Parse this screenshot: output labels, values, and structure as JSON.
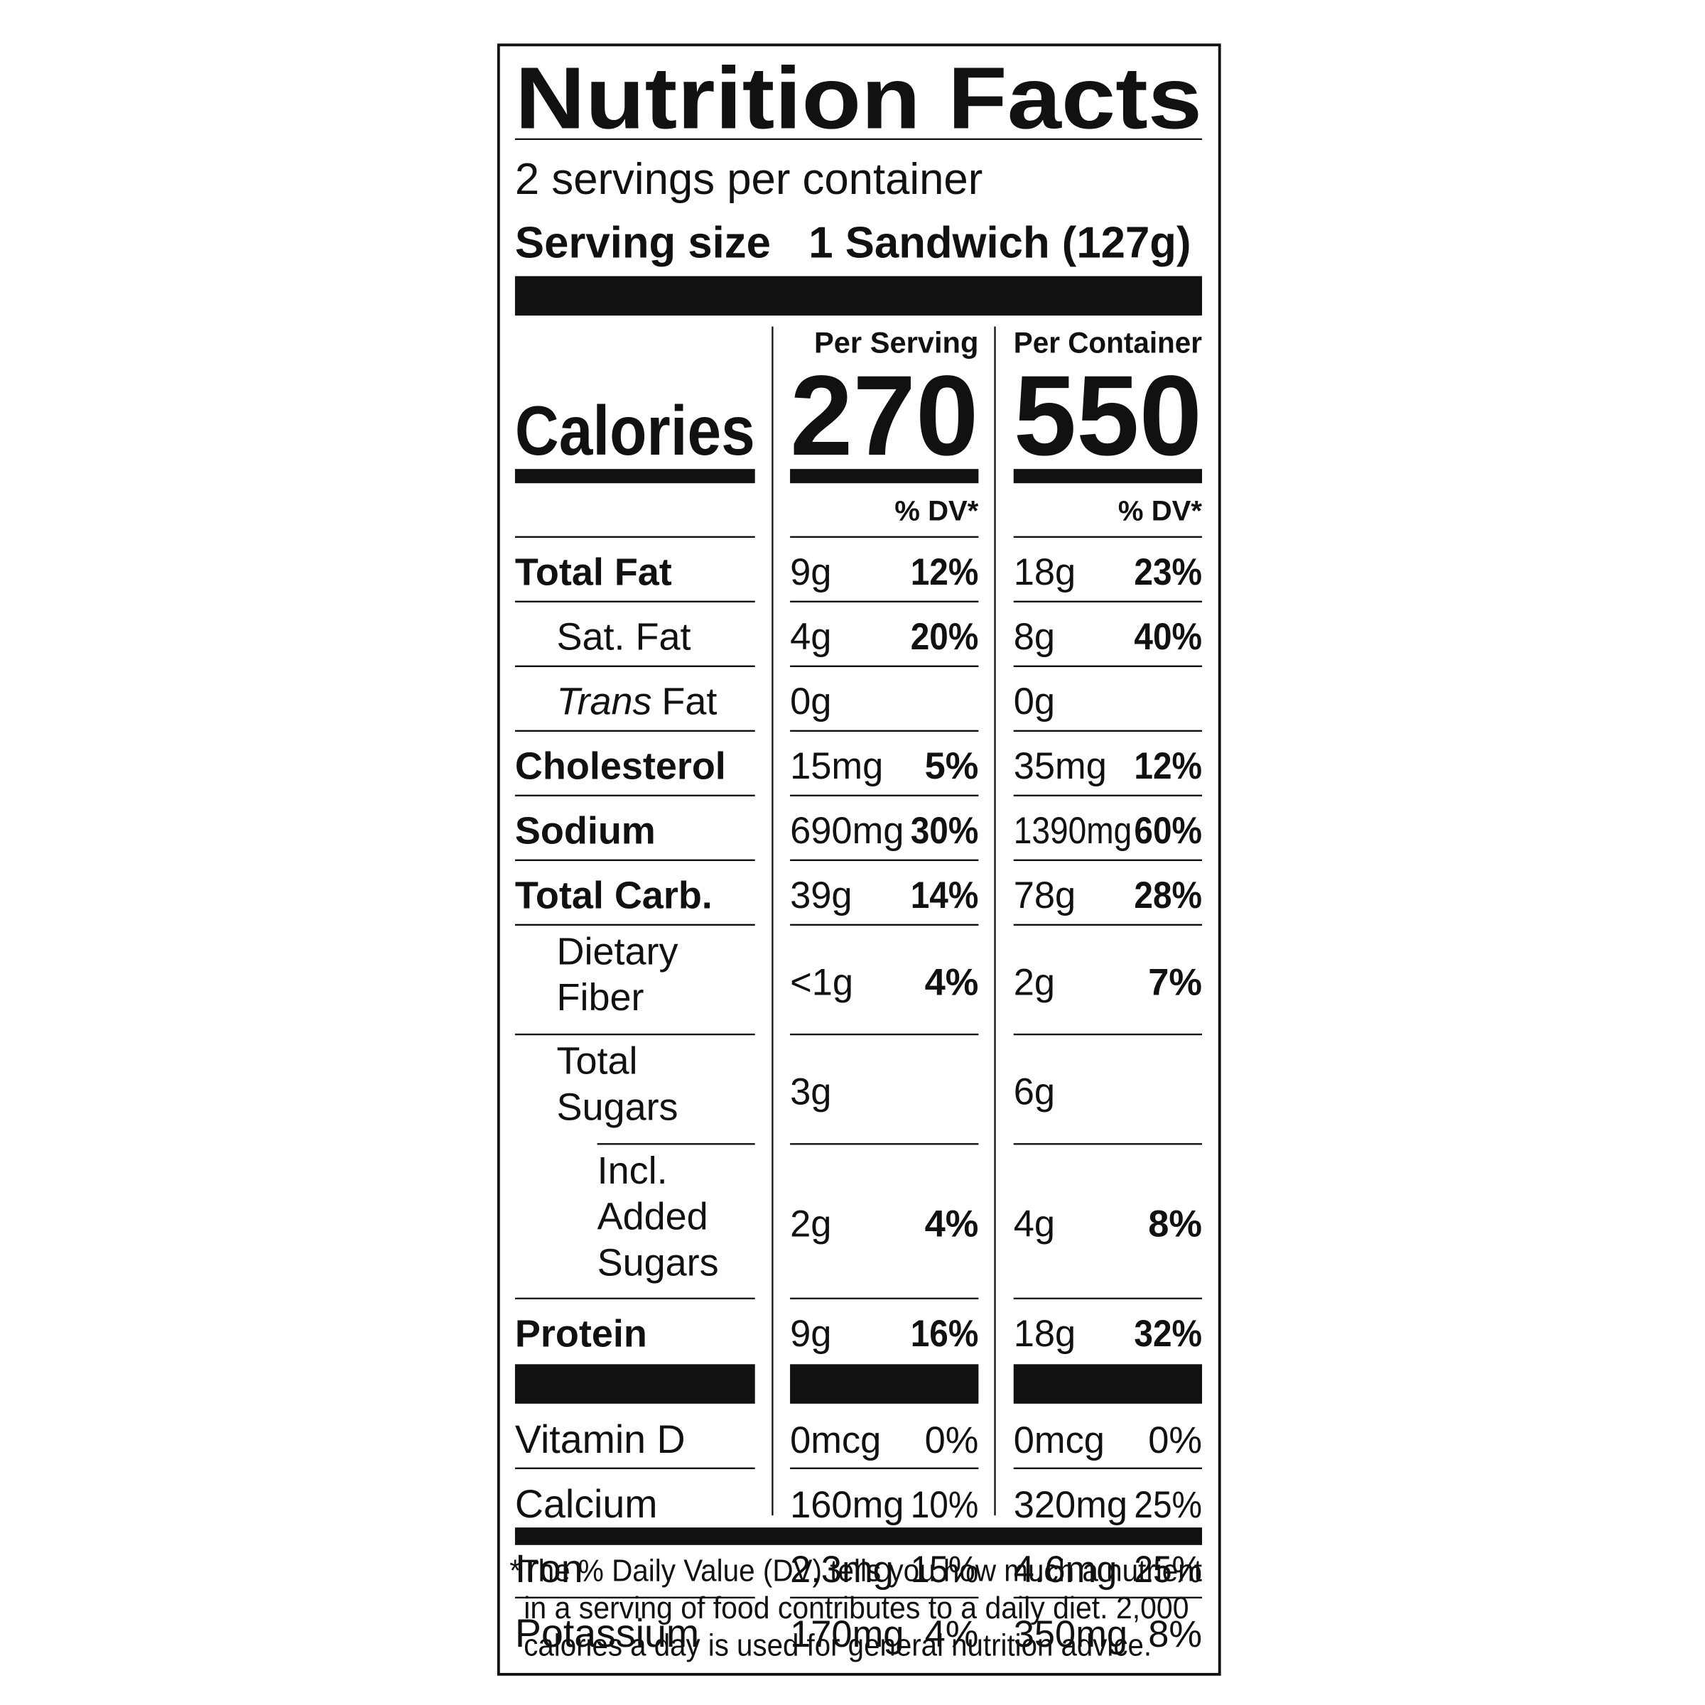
{
  "header": {
    "title": "Nutrition Facts",
    "servings": "2 servings per container",
    "serving_size_label": "Serving size",
    "serving_size": "1 Sandwich (127g)"
  },
  "calories": {
    "label": "Calories",
    "columns": [
      {
        "heading": "Per Serving",
        "value": "270",
        "dv_heading": "% DV*"
      },
      {
        "heading": "Per Container",
        "value": "550",
        "dv_heading": "% DV*"
      }
    ]
  },
  "nutrients": [
    {
      "name": "Total Fat",
      "bold": true,
      "indent": 0,
      "amounts": [
        "9g",
        "18g"
      ],
      "dv": [
        "12%",
        "23%"
      ]
    },
    {
      "name": "Sat. Fat",
      "bold": false,
      "indent": 1,
      "amounts": [
        "4g",
        "8g"
      ],
      "dv": [
        "20%",
        "40%"
      ]
    },
    {
      "name_italic": "Trans",
      "name": "Fat",
      "bold": false,
      "indent": 1,
      "amounts": [
        "0g",
        "0g"
      ]
    },
    {
      "name": "Cholesterol",
      "bold": true,
      "indent": 0,
      "amounts": [
        "15mg",
        "35mg"
      ],
      "dv": [
        "5%",
        "12%"
      ]
    },
    {
      "name": "Sodium",
      "bold": true,
      "indent": 0,
      "amounts": [
        "690mg",
        "1390mg"
      ],
      "dv": [
        "30%",
        "60%"
      ]
    },
    {
      "name": "Total Carb.",
      "bold": true,
      "indent": 0,
      "amounts": [
        "39g",
        "78g"
      ],
      "dv": [
        "14%",
        "28%"
      ]
    },
    {
      "name": "Dietary Fiber",
      "bold": false,
      "indent": 1,
      "amounts": [
        "<1g",
        "2g"
      ],
      "dv": [
        "4%",
        "7%"
      ]
    },
    {
      "name": "Total Sugars",
      "bold": false,
      "indent": 1,
      "amounts": [
        "3g",
        "6g"
      ]
    },
    {
      "name": "Incl. Added Sugars",
      "bold": false,
      "indent": 2,
      "amounts": [
        "2g",
        "4g"
      ],
      "dv": [
        "4%",
        "8%"
      ]
    },
    {
      "name": "Protein",
      "bold": true,
      "indent": 0,
      "amounts": [
        "9g",
        "18g"
      ],
      "dv": [
        "16%",
        "32%"
      ]
    }
  ],
  "vitamins": [
    {
      "name": "Vitamin D",
      "amounts": [
        "0mcg",
        "0mcg"
      ],
      "dv": [
        "0%",
        "0%"
      ]
    },
    {
      "name": "Calcium",
      "amounts": [
        "160mg",
        "320mg"
      ],
      "dv": [
        "10%",
        "25%"
      ]
    },
    {
      "name": "Iron",
      "amounts": [
        "2.3mg",
        "4.6mg"
      ],
      "dv": [
        "15%",
        "25%"
      ]
    },
    {
      "name": "Potassium",
      "amounts": [
        "170mg",
        "350mg"
      ],
      "dv": [
        "4%",
        "8%"
      ]
    }
  ],
  "footnote": [
    "*The % Daily Value (DV) tells you how much a nutrient",
    "in a serving of food contributes to a daily diet. 2,000",
    "calories a day is used for general nutrition advice."
  ]
}
